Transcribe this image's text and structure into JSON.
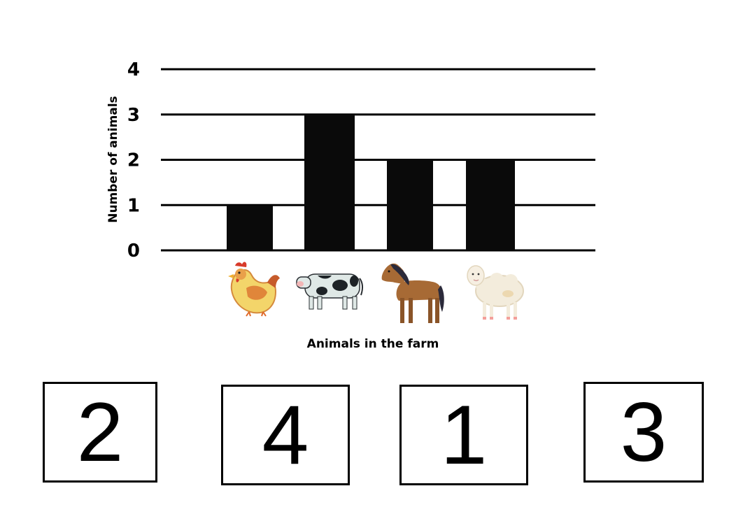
{
  "chart_data": {
    "type": "bar",
    "categories": [
      "chicken",
      "cow",
      "horse",
      "sheep"
    ],
    "values": [
      1,
      3,
      2,
      2
    ],
    "xlabel": "Animals in the farm",
    "ylabel": "Number of animals",
    "ylim": [
      0,
      4
    ],
    "yticks": [
      0,
      1,
      2,
      3,
      4
    ],
    "grid": true,
    "bar_color": "#0a0a0a"
  },
  "category_icons": [
    "chicken-icon",
    "cow-icon",
    "horse-icon",
    "sheep-icon"
  ],
  "answer_choices": [
    "2",
    "4",
    "1",
    "3"
  ]
}
